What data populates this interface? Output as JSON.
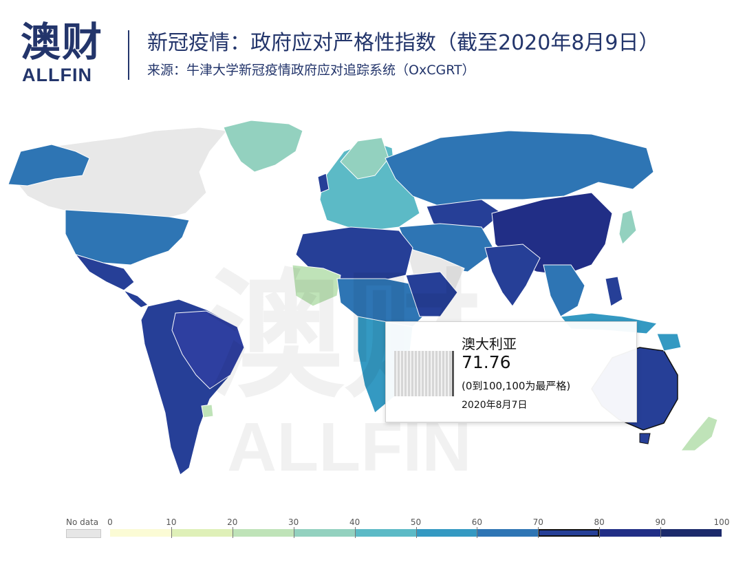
{
  "header": {
    "logo_cn": "澳财",
    "logo_en": "ALLFIN",
    "title": "新冠疫情：政府应对严格性指数（截至2020年8月9日）",
    "subtitle": "来源：牛津大学新冠疫情政府应对追踪系统（OxCGRT）"
  },
  "tooltip": {
    "country": "澳大利亚",
    "value": "71.76",
    "scale_note": "(0到100,100为最严格)",
    "date": "2020年8月7日"
  },
  "legend": {
    "nodata_label": "No data",
    "nodata_color": "#e6e6e6",
    "ticks": [
      "0",
      "10",
      "20",
      "30",
      "40",
      "50",
      "60",
      "70",
      "80",
      "90",
      "100"
    ],
    "colors": [
      "#fbfbd5",
      "#dff0b8",
      "#bfe3b8",
      "#93d1bf",
      "#5cbac6",
      "#3499c2",
      "#2e75b4",
      "#263f97",
      "#212e86",
      "#1c2a6b"
    ],
    "active_bin": 7
  },
  "map": {
    "highlighted_country": "澳大利亚",
    "highlight_value": 71.76
  }
}
